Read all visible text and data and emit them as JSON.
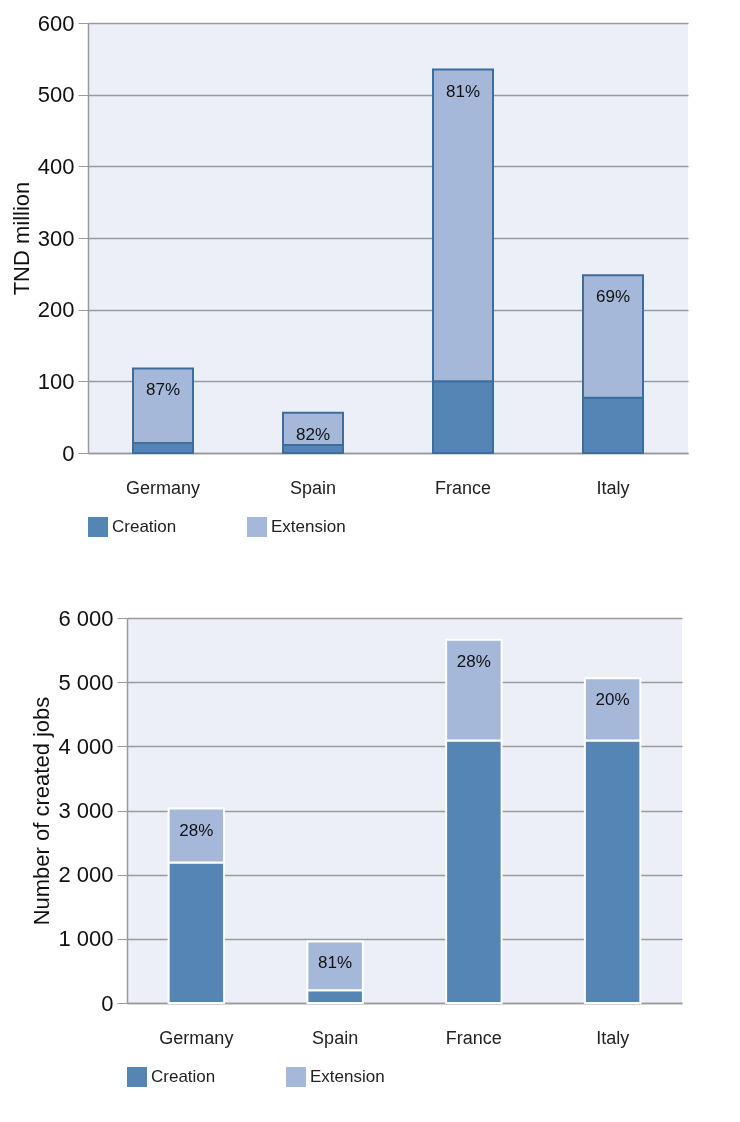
{
  "chart_data": [
    {
      "type": "bar",
      "stacked": true,
      "ylabel": "TND million",
      "categories": [
        "Germany",
        "Spain",
        "France",
        "Italy"
      ],
      "ylim": [
        0,
        600
      ],
      "yticks": [
        0,
        100,
        200,
        300,
        400,
        500,
        600
      ],
      "grid": "y",
      "legend": "bottom",
      "annotations": [
        {
          "text": "87%",
          "x": "Germany",
          "y": 118
        },
        {
          "text": "82%",
          "x": "Spain",
          "y": 56
        },
        {
          "text": "81%",
          "x": "France",
          "y": 535
        },
        {
          "text": "69%",
          "x": "Italy",
          "y": 248
        }
      ],
      "series": [
        {
          "name": "Creation",
          "color": "#5585b5",
          "values": [
            14,
            11,
            100,
            77
          ]
        },
        {
          "name": "Extension",
          "color": "#a5b8d9",
          "values": [
            104,
            45,
            435,
            171
          ]
        }
      ]
    },
    {
      "type": "bar",
      "stacked": true,
      "ylabel": "Number of created jobs",
      "categories": [
        "Germany",
        "Spain",
        "France",
        "Italy"
      ],
      "ylim": [
        0,
        6000
      ],
      "yticks": [
        0,
        {
          "value": 1000,
          "label": "1 000"
        },
        {
          "value": 2000,
          "label": "2 000"
        },
        {
          "value": 3000,
          "label": "3 000"
        },
        {
          "value": 4000,
          "label": "4 000"
        },
        {
          "value": 5000,
          "label": "5 000"
        },
        {
          "value": 6000,
          "label": "6 000"
        }
      ],
      "grid": "y",
      "legend": "bottom",
      "annotations": [
        {
          "text": "28%",
          "x": "Germany",
          "y": 3030
        },
        {
          "text": "81%",
          "x": "Spain",
          "y": 960
        },
        {
          "text": "28%",
          "x": "France",
          "y": 5660
        },
        {
          "text": "20%",
          "x": "Italy",
          "y": 5060
        }
      ],
      "series": [
        {
          "name": "Creation",
          "color": "#5585b5",
          "values": [
            2190,
            200,
            4090,
            4090
          ]
        },
        {
          "name": "Extension",
          "color": "#a5b8d9",
          "values": [
            840,
            760,
            1570,
            970
          ]
        }
      ]
    }
  ]
}
